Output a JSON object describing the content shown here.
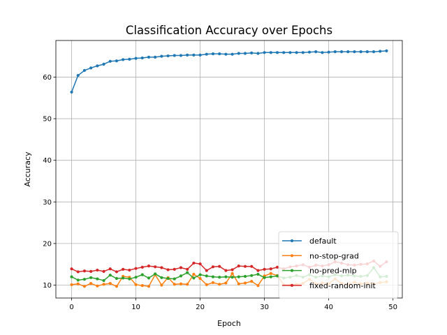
{
  "chart_data": {
    "type": "line",
    "title": "Classification Accuracy over Epochs",
    "xlabel": "Epoch",
    "ylabel": "Accuracy",
    "xlim": [
      -2.45,
      51.45
    ],
    "ylim": [
      6.9,
      68.8
    ],
    "xticks": [
      "0",
      "10",
      "20",
      "30",
      "40",
      "50"
    ],
    "yticks": [
      "10",
      "20",
      "30",
      "40",
      "50",
      "60"
    ],
    "grid": true,
    "legend_position": "lower right",
    "series": [
      {
        "name": "default",
        "color": "#1f77b4",
        "x": [
          0,
          1,
          2,
          3,
          4,
          5,
          6,
          7,
          8,
          9,
          10,
          11,
          12,
          13,
          14,
          15,
          16,
          17,
          18,
          19,
          20,
          21,
          22,
          23,
          24,
          25,
          26,
          27,
          28,
          29,
          30,
          31,
          32,
          33,
          34,
          35,
          36,
          37,
          38,
          39,
          40,
          41,
          42,
          43,
          44,
          45,
          46,
          47,
          48,
          49
        ],
        "y": [
          56.4,
          60.4,
          61.6,
          62.2,
          62.7,
          63.1,
          63.8,
          63.9,
          64.2,
          64.3,
          64.5,
          64.6,
          64.8,
          64.8,
          65.0,
          65.1,
          65.2,
          65.2,
          65.3,
          65.3,
          65.3,
          65.5,
          65.6,
          65.6,
          65.5,
          65.5,
          65.7,
          65.7,
          65.8,
          65.7,
          65.9,
          65.9,
          65.9,
          65.9,
          65.9,
          65.9,
          65.9,
          66.0,
          66.1,
          65.9,
          66.0,
          66.1,
          66.1,
          66.1,
          66.1,
          66.1,
          66.1,
          66.1,
          66.2,
          66.3
        ]
      },
      {
        "name": "no-stop-grad",
        "color": "#ff7f0e",
        "x": [
          0,
          1,
          2,
          3,
          4,
          5,
          6,
          7,
          8,
          9,
          10,
          11,
          12,
          13,
          14,
          15,
          16,
          17,
          18,
          19,
          20,
          21,
          22,
          23,
          24,
          25,
          26,
          27,
          28,
          29,
          30,
          31,
          32,
          33,
          34,
          35,
          36,
          37,
          38,
          39,
          40,
          41,
          42,
          43,
          44,
          45,
          46,
          47,
          48,
          49
        ],
        "y": [
          10.1,
          10.3,
          9.7,
          10.4,
          9.8,
          10.2,
          10.4,
          9.7,
          12.1,
          11.9,
          10.1,
          9.9,
          9.7,
          12.5,
          10.0,
          11.8,
          10.2,
          10.3,
          10.2,
          12.6,
          11.6,
          10.1,
          10.6,
          10.2,
          10.5,
          12.8,
          10.3,
          10.5,
          10.9,
          9.9,
          12.2,
          12.8,
          12.3,
          10.1,
          10.0,
          10.2,
          10.4,
          11.4,
          10.3,
          10.5,
          10.3,
          11.5,
          10.4,
          10.2,
          10.7,
          10.3,
          10.5,
          10.3,
          10.6,
          10.8
        ]
      },
      {
        "name": "no-pred-mlp",
        "color": "#2ca02c",
        "x": [
          0,
          1,
          2,
          3,
          4,
          5,
          6,
          7,
          8,
          9,
          10,
          11,
          12,
          13,
          14,
          15,
          16,
          17,
          18,
          19,
          20,
          21,
          22,
          23,
          24,
          25,
          26,
          27,
          28,
          29,
          30,
          31,
          32,
          33,
          34,
          35,
          36,
          37,
          38,
          39,
          40,
          41,
          42,
          43,
          44,
          45,
          46,
          47,
          48,
          49
        ],
        "y": [
          12.0,
          11.2,
          11.4,
          11.8,
          11.5,
          11.1,
          12.4,
          11.6,
          11.7,
          11.5,
          11.9,
          12.5,
          11.7,
          12.7,
          11.8,
          11.6,
          11.5,
          12.2,
          13.0,
          11.7,
          12.5,
          12.2,
          12.0,
          11.9,
          12.0,
          11.9,
          12.0,
          12.1,
          12.3,
          12.6,
          11.8,
          12.0,
          12.2,
          11.7,
          11.9,
          12.3,
          11.9,
          12.5,
          11.9,
          12.2,
          12.0,
          12.5,
          12.2,
          12.4,
          12.2,
          12.1,
          12.3,
          14.2,
          12.0,
          12.1
        ]
      },
      {
        "name": "fixed-random-init",
        "color": "#d62728",
        "x": [
          0,
          1,
          2,
          3,
          4,
          5,
          6,
          7,
          8,
          9,
          10,
          11,
          12,
          13,
          14,
          15,
          16,
          17,
          18,
          19,
          20,
          21,
          22,
          23,
          24,
          25,
          26,
          27,
          28,
          29,
          30,
          31,
          32,
          33,
          34,
          35,
          36,
          37,
          38,
          39,
          40,
          41,
          42,
          43,
          44,
          45,
          46,
          47,
          48,
          49
        ],
        "y": [
          13.9,
          13.2,
          13.4,
          13.3,
          13.6,
          13.3,
          13.9,
          13.2,
          13.8,
          13.6,
          14.0,
          14.3,
          14.6,
          14.4,
          14.2,
          13.7,
          13.8,
          14.2,
          13.8,
          15.3,
          15.1,
          13.5,
          14.4,
          14.5,
          13.5,
          13.7,
          14.6,
          14.5,
          14.5,
          13.5,
          13.8,
          13.9,
          14.3,
          13.9,
          14.4,
          14.6,
          14.9,
          14.3,
          14.8,
          14.6,
          14.9,
          15.6,
          15.3,
          14.9,
          14.8,
          15.0,
          15.1,
          15.8,
          14.5,
          15.6
        ]
      }
    ]
  }
}
